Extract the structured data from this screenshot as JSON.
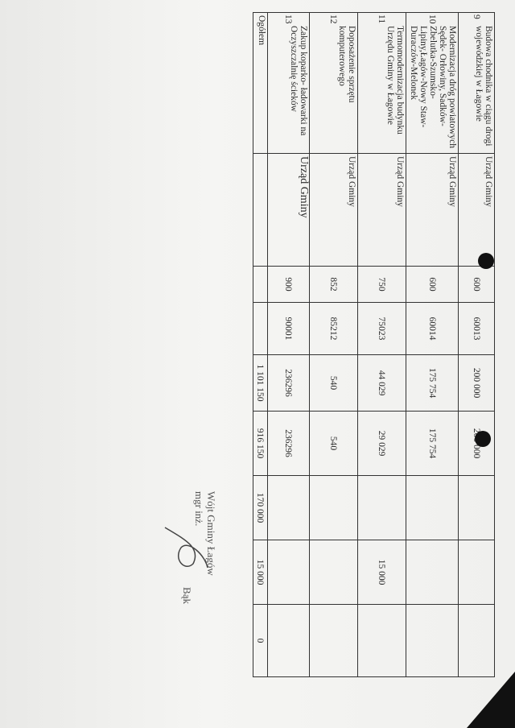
{
  "table": {
    "rows": [
      {
        "no": "9",
        "name": "Budowa chodnika w ciągu drogi wojewódzkiej w Łagowie",
        "unit": "Urząd Gminy",
        "dzial": "600",
        "rozdzial": "60013",
        "total": "200 000",
        "c6": "200 000",
        "c7": "",
        "c8": "",
        "c9": ""
      },
      {
        "no": "10",
        "name": "Modernizacja dróg powiatowych Sędek- Orłowiny, Sadków-Zbelutka-Szumsko-Lipiny,Łagów-Nowy Staw-Duraczów-Melonek",
        "unit": "Urząd Gminy",
        "dzial": "600",
        "rozdzial": "60014",
        "total": "175 754",
        "c6": "175 754",
        "c7": "",
        "c8": "",
        "c9": ""
      },
      {
        "no": "11",
        "name": "Termomodernizacja budynku Urzędu Gminy w Łagowie",
        "unit": "Urząd Gminy",
        "dzial": "750",
        "rozdzial": "75023",
        "total": "44 029",
        "c6": "29 029",
        "c7": "",
        "c8": "15 000",
        "c9": ""
      },
      {
        "no": "12",
        "name": "Doposażenie sprzętu komputerowego",
        "unit": "Urząd Gminy",
        "dzial": "852",
        "rozdzial": "85212",
        "total": "540",
        "c6": "540",
        "c7": "",
        "c8": "",
        "c9": ""
      },
      {
        "no": "13",
        "name": "Zakup koparko- ładowarki na Oczyszczalnię ścieków",
        "unit": "Urząd Gminy",
        "dzial": "900",
        "rozdzial": "90001",
        "total": "236296",
        "c6": "236296",
        "c7": "",
        "c8": "",
        "c9": ""
      }
    ],
    "total_row": {
      "label": "Ogółem",
      "total": "1 101 150",
      "c6": "916 150",
      "c7": "170 000",
      "c8": "15 000",
      "c9": "0"
    }
  },
  "signature": {
    "line1": "Wójt Gminy Łagów",
    "line2": "mgr inż.",
    "line3": "Bąk"
  }
}
